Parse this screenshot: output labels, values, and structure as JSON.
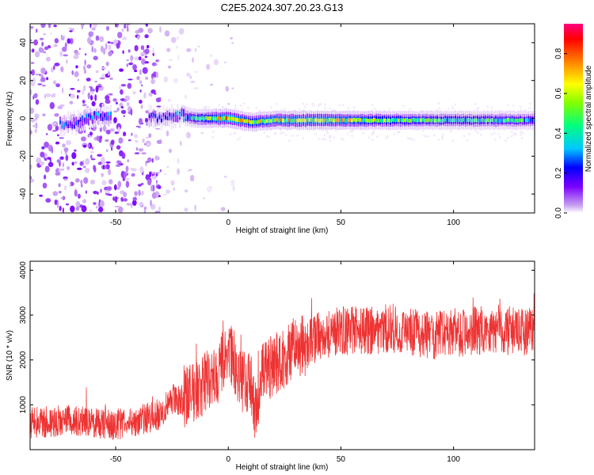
{
  "page_title": "C2E5.2024.307.20.23.G13",
  "chart_data": [
    {
      "type": "heatmap",
      "title": "C2E5.2024.307.20.23.G13",
      "xlabel": "Height of straight line (km)",
      "ylabel": "Frequency (Hz)",
      "xlim": [
        -88,
        136
      ],
      "ylim": [
        -50,
        50
      ],
      "x_ticks": [
        -50,
        0,
        50,
        100
      ],
      "y_ticks": [
        -40,
        -20,
        0,
        20,
        40
      ],
      "colorbar": {
        "label": "Normalized spectral amplitude",
        "range": [
          0.0,
          0.95
        ],
        "ticks": [
          0.0,
          0.2,
          0.4,
          0.6,
          0.8
        ],
        "colors": [
          "#ffffff",
          "#c8a0f0",
          "#7a00ff",
          "#0000ff",
          "#00c8ff",
          "#00ff80",
          "#80ff00",
          "#ffff00",
          "#ff8000",
          "#ff0000",
          "#ff0080"
        ]
      },
      "ridge": [
        {
          "x": -70,
          "f": -3,
          "amp": 0.35
        },
        {
          "x": -60,
          "f": 1,
          "amp": 0.4
        },
        {
          "x": -30,
          "f": 0,
          "amp": 0.3
        },
        {
          "x": -25,
          "f": 2,
          "amp": 0.35
        },
        {
          "x": -15,
          "f": 0,
          "amp": 0.55
        },
        {
          "x": 0,
          "f": 0,
          "amp": 0.85
        },
        {
          "x": 10,
          "f": -2,
          "amp": 0.7
        },
        {
          "x": 20,
          "f": -1,
          "amp": 0.75
        },
        {
          "x": 40,
          "f": -1,
          "amp": 0.8
        },
        {
          "x": 60,
          "f": -1,
          "amp": 0.7
        },
        {
          "x": 80,
          "f": -1,
          "amp": 0.6
        },
        {
          "x": 100,
          "f": -1,
          "amp": 0.55
        },
        {
          "x": 120,
          "f": -1,
          "amp": 0.55
        },
        {
          "x": 135,
          "f": -1,
          "amp": 0.5
        }
      ]
    },
    {
      "type": "line",
      "xlabel": "Height of straight line (km)",
      "ylabel": "SNR (10 * v/v)",
      "xlim": [
        -88,
        136
      ],
      "ylim": [
        0,
        4200
      ],
      "x_ticks": [
        -50,
        0,
        50,
        100
      ],
      "y_ticks": [
        1000,
        2000,
        3000,
        4000
      ],
      "color": "#ee3333",
      "trend": {
        "x": [
          -88,
          -70,
          -50,
          -40,
          -30,
          -25,
          -20,
          -10,
          -5,
          0,
          5,
          10,
          12,
          15,
          20,
          25,
          30,
          35,
          40,
          50,
          60,
          70,
          80,
          90,
          100,
          110,
          120,
          130,
          136
        ],
        "y": [
          600,
          650,
          550,
          650,
          800,
          1150,
          1100,
          1500,
          1650,
          2250,
          1550,
          1450,
          800,
          1650,
          1900,
          2050,
          2300,
          2300,
          2550,
          2650,
          2650,
          2700,
          2600,
          2550,
          2600,
          2650,
          2700,
          2600,
          2750
        ]
      }
    }
  ]
}
